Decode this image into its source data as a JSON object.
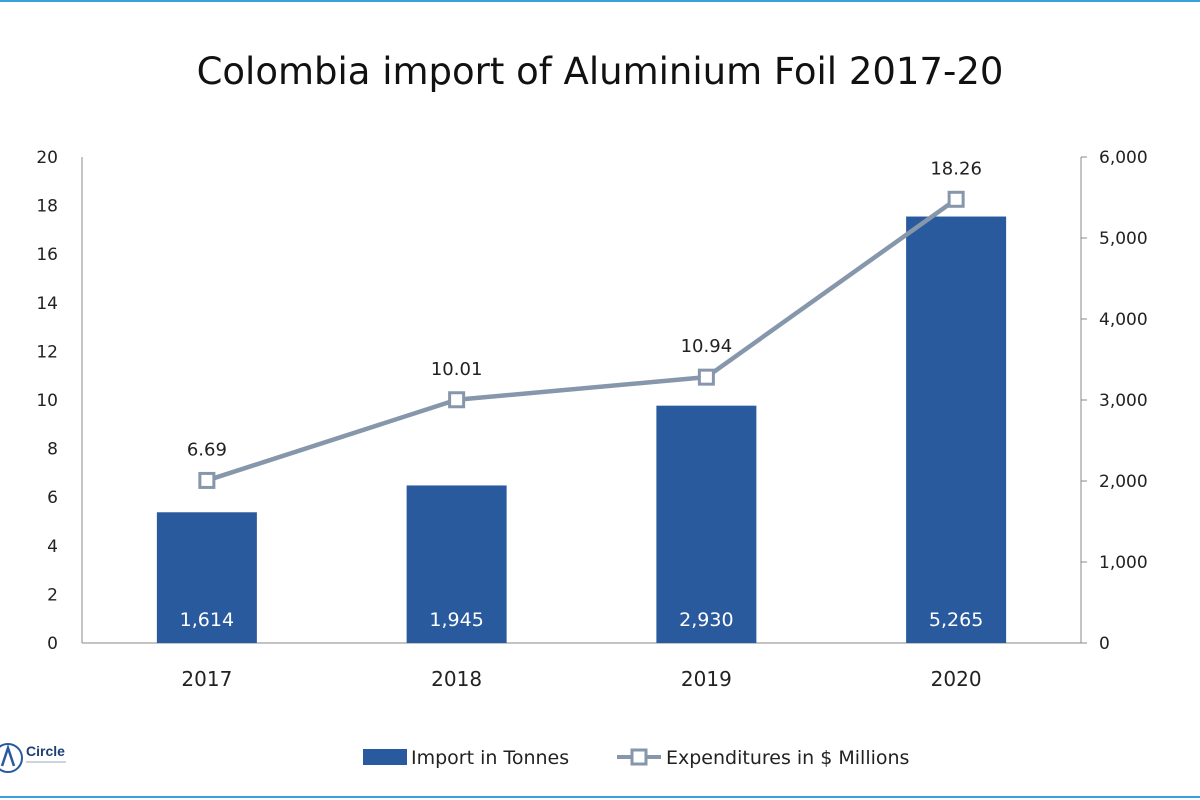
{
  "chart_data": {
    "type": "bar",
    "title": "Colombia import of Aluminium Foil 2017-20",
    "categories": [
      "2017",
      "2018",
      "2019",
      "2020"
    ],
    "series": [
      {
        "name": "Import in Tonnes",
        "type": "bar",
        "axis": "right",
        "values": [
          1614,
          1945,
          2930,
          5265
        ],
        "labels": [
          "1,614",
          "1,945",
          "2,930",
          "5,265"
        ],
        "color": "#2a5a9e"
      },
      {
        "name": "Expenditures in $ Millions",
        "type": "line",
        "axis": "left",
        "values": [
          6.69,
          10.01,
          10.94,
          18.26
        ],
        "labels": [
          "6.69",
          "10.01",
          "10.94",
          "18.26"
        ],
        "color": "#8696ab"
      }
    ],
    "left_axis": {
      "ylim": [
        0,
        20
      ],
      "ticks": [
        0,
        2,
        4,
        6,
        8,
        10,
        12,
        14,
        16,
        18,
        20
      ],
      "tick_labels": [
        "0",
        "2",
        "4",
        "6",
        "8",
        "10",
        "12",
        "14",
        "16",
        "18",
        "20"
      ]
    },
    "right_axis": {
      "ylim": [
        0,
        6000
      ],
      "ticks": [
        0,
        1000,
        2000,
        3000,
        4000,
        5000,
        6000
      ],
      "tick_labels": [
        "0",
        "1,000",
        "2,000",
        "3,000",
        "4,000",
        "5,000",
        "6,000"
      ]
    },
    "grid": false,
    "legend_position": "bottom"
  },
  "logo": {
    "text": "Circle"
  },
  "colors": {
    "frame": "#3aa0d8",
    "bar": "#2a5a9e",
    "line": "#8696ab"
  }
}
